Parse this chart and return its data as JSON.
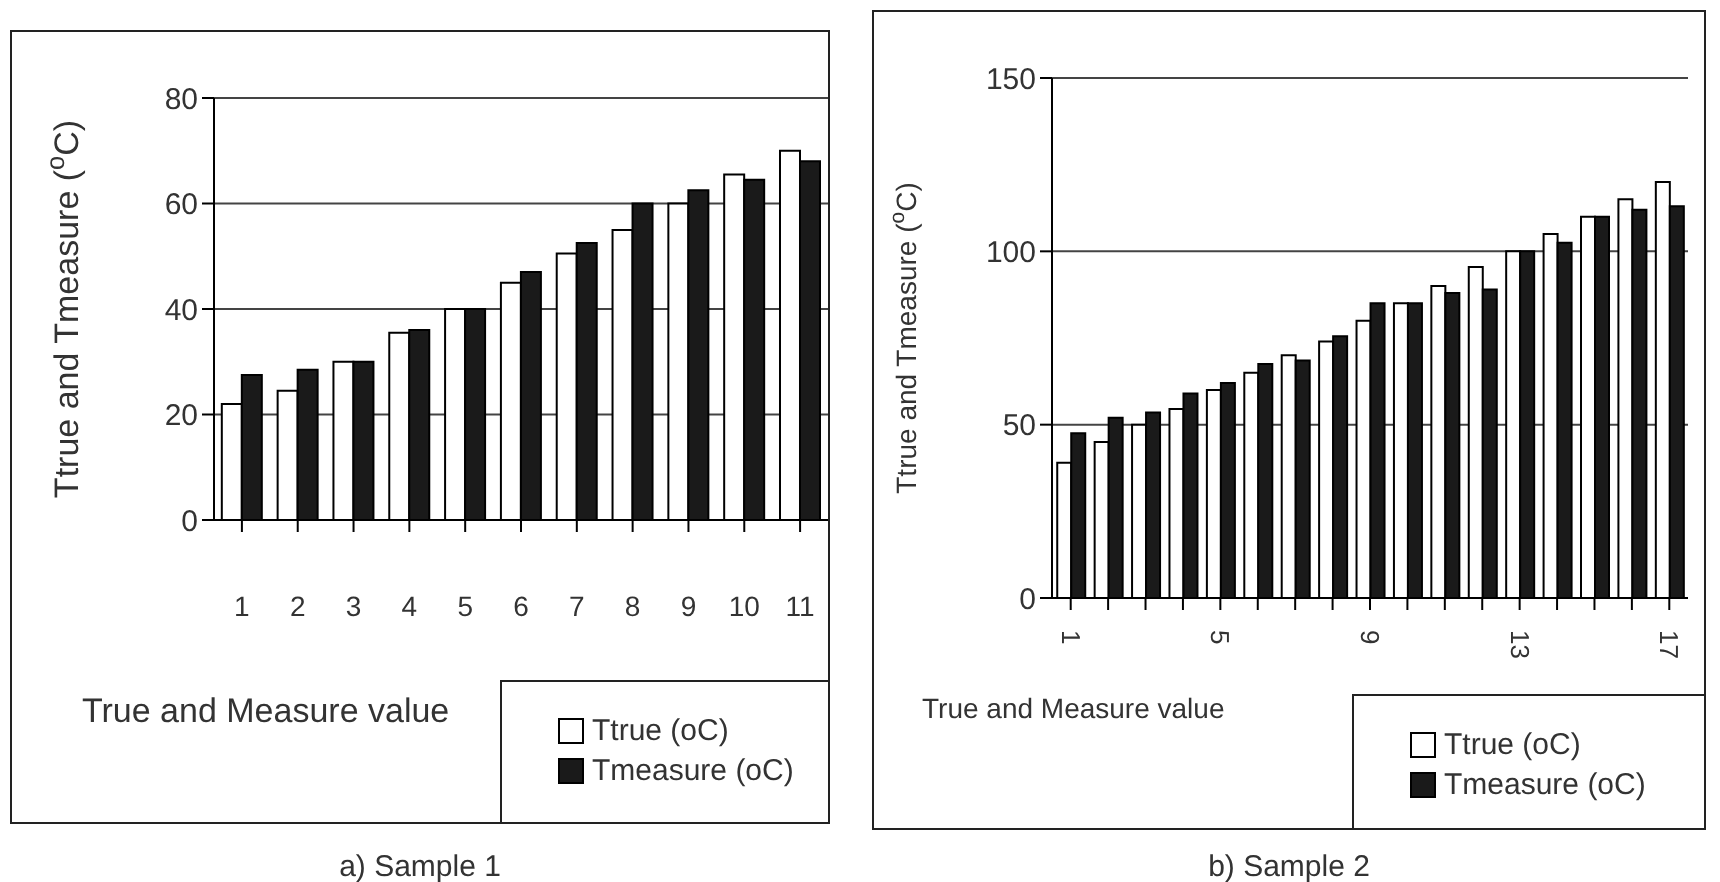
{
  "chart_data": [
    {
      "type": "bar",
      "title": "a)  Sample 1",
      "xlabel": "True and Measure value",
      "ylabel": "Ttrue and Tmeasure ($^{o}$C)",
      "categories": [
        "1",
        "2",
        "3",
        "4",
        "5",
        "6",
        "7",
        "8",
        "9",
        "10",
        "11"
      ],
      "series": [
        {
          "name": "Ttrue (oC)",
          "color": "#ffffff",
          "values": [
            22,
            24.5,
            30,
            35.5,
            40,
            45,
            50.5,
            55,
            60,
            65.5,
            70
          ]
        },
        {
          "name": "Tmeasure (oC)",
          "color": "#1a1a1a",
          "values": [
            27.5,
            28.5,
            30,
            36,
            40,
            47,
            52.5,
            60,
            62.5,
            64.5,
            68
          ]
        }
      ],
      "ylim": [
        0,
        80
      ],
      "yticks": [
        0,
        20,
        40,
        60,
        80
      ],
      "grid": "y",
      "legend": "bottom right"
    },
    {
      "type": "bar",
      "title": "b)  Sample 2",
      "xlabel": "True and Measure value",
      "ylabel": "Ttrue and Tmeasure ($^{o}$C)",
      "categories": [
        "1",
        null,
        null,
        null,
        "5",
        null,
        null,
        null,
        "9",
        null,
        null,
        null,
        "13",
        null,
        null,
        null,
        "17"
      ],
      "series": [
        {
          "name": "Ttrue (oC)",
          "color": "#ffffff",
          "values": [
            39,
            45,
            50,
            54.5,
            60,
            65,
            70,
            74,
            80,
            85,
            90,
            95.5,
            100,
            105,
            110,
            115,
            120
          ]
        },
        {
          "name": "Tmeasure (oC)",
          "color": "#1a1a1a",
          "values": [
            47.5,
            52,
            53.5,
            59,
            62,
            67.5,
            68.5,
            75.5,
            85,
            85,
            88,
            89,
            100,
            102.5,
            110,
            112,
            113
          ]
        }
      ],
      "ylim": [
        0,
        150
      ],
      "yticks": [
        0,
        50,
        100,
        150
      ],
      "grid": "y",
      "legend": "bottom right"
    }
  ]
}
